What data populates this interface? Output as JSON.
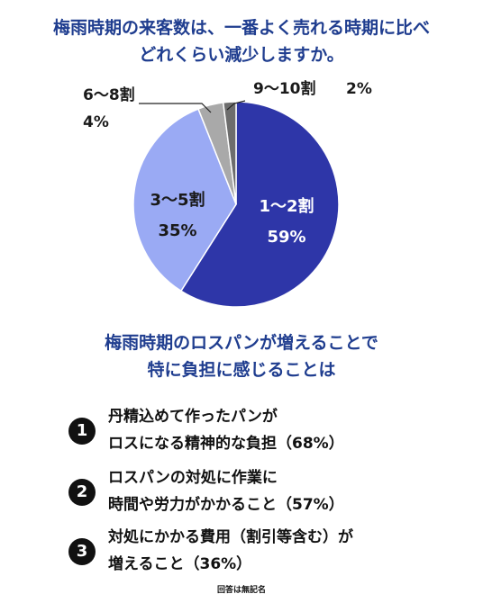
{
  "title_line1": "梅雨時期の来客数は、一番よく売れる時期に比べ",
  "title_line2": "どれくらい減少しますか。",
  "chart_data": {
    "type": "pie",
    "slices": [
      {
        "label": "1〜2割",
        "value": 59,
        "value_label": "59%",
        "color": "#2e36a8"
      },
      {
        "label": "3〜5割",
        "value": 35,
        "value_label": "35%",
        "color": "#9aaaf4"
      },
      {
        "label": "6〜8割",
        "value": 4,
        "value_label": "4%",
        "color": "#a9a9a9"
      },
      {
        "label": "9〜10割",
        "value": 2,
        "value_label": "2%",
        "color": "#6d6d6d"
      }
    ],
    "start": "12 o'clock",
    "direction": "clockwise"
  },
  "subtitle_line1": "梅雨時期のロスパンが増えることで",
  "subtitle_line2": "特に負担に感じることは",
  "rankings": [
    {
      "num": "1",
      "line1": "丹精込めて作ったパンが",
      "line2": "ロスになる精神的な負担（68%）"
    },
    {
      "num": "2",
      "line1": "ロスパンの対処に作業に",
      "line2": "時間や労力がかかること（57%）"
    },
    {
      "num": "3",
      "line1": "対処にかかる費用（割引等含む）が",
      "line2": "増えること（36%）"
    }
  ],
  "footnote": "回答は無記名"
}
